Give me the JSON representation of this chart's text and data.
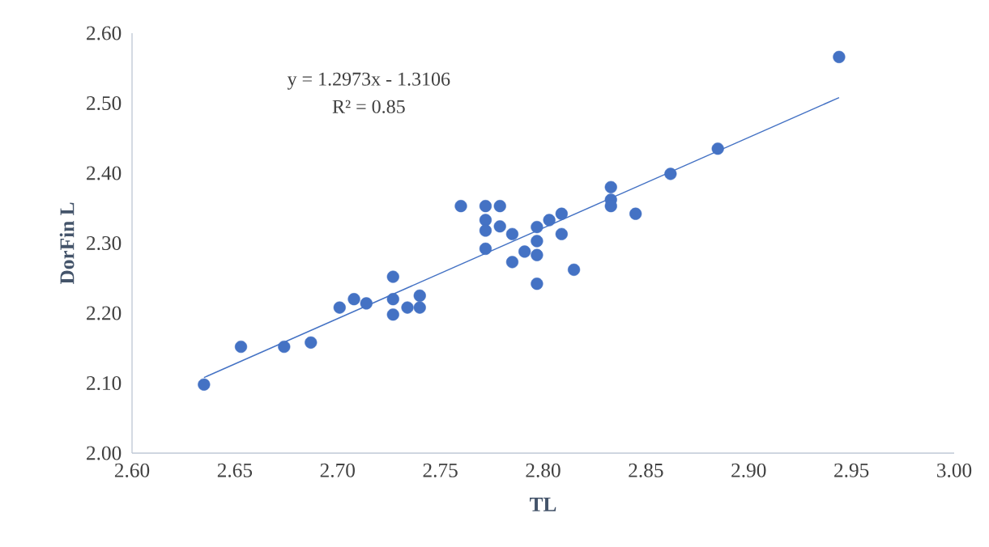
{
  "chart_data": {
    "type": "scatter",
    "xlabel": "TL",
    "ylabel": "DorFin L",
    "annotations": [
      "y = 1.2973x - 1.3106",
      "R² = 0.85"
    ],
    "xlim": [
      2.6,
      3.0
    ],
    "ylim": [
      2.0,
      2.6
    ],
    "xticks": [
      {
        "value": 2.6,
        "label": "2.60"
      },
      {
        "value": 2.65,
        "label": "2.65"
      },
      {
        "value": 2.7,
        "label": "2.70"
      },
      {
        "value": 2.75,
        "label": "2.75"
      },
      {
        "value": 2.8,
        "label": "2.80"
      },
      {
        "value": 2.85,
        "label": "2.85"
      },
      {
        "value": 2.9,
        "label": "2.90"
      },
      {
        "value": 2.95,
        "label": "2.95"
      },
      {
        "value": 3.0,
        "label": "3.00"
      }
    ],
    "yticks": [
      {
        "value": 2.0,
        "label": "2.00"
      },
      {
        "value": 2.1,
        "label": "2.10"
      },
      {
        "value": 2.2,
        "label": "2.20"
      },
      {
        "value": 2.3,
        "label": "2.30"
      },
      {
        "value": 2.4,
        "label": "2.40"
      },
      {
        "value": 2.5,
        "label": "2.50"
      },
      {
        "value": 2.6,
        "label": "2.60"
      }
    ],
    "marker": "circle",
    "series": [
      {
        "color": "#4472c4",
        "x": [
          2.635,
          2.653,
          2.674,
          2.687,
          2.701,
          2.708,
          2.714,
          2.727,
          2.727,
          2.727,
          2.734,
          2.74,
          2.74,
          2.76,
          2.772,
          2.772,
          2.772,
          2.772,
          2.779,
          2.779,
          2.785,
          2.785,
          2.791,
          2.797,
          2.797,
          2.797,
          2.797,
          2.803,
          2.809,
          2.809,
          2.815,
          2.833,
          2.833,
          2.833,
          2.845,
          2.862,
          2.885,
          2.944
        ],
        "values": [
          2.098,
          2.152,
          2.152,
          2.158,
          2.208,
          2.22,
          2.214,
          2.252,
          2.22,
          2.198,
          2.208,
          2.225,
          2.208,
          2.353,
          2.353,
          2.333,
          2.318,
          2.292,
          2.353,
          2.324,
          2.313,
          2.273,
          2.288,
          2.323,
          2.303,
          2.283,
          2.242,
          2.333,
          2.342,
          2.313,
          2.262,
          2.38,
          2.362,
          2.353,
          2.342,
          2.399,
          2.435,
          2.566
        ]
      },
      {
        "type": "line",
        "color": "#4472c4",
        "marker": "none",
        "x": [
          2.635,
          2.944
        ],
        "values": [
          2.108,
          2.508
        ]
      }
    ]
  }
}
